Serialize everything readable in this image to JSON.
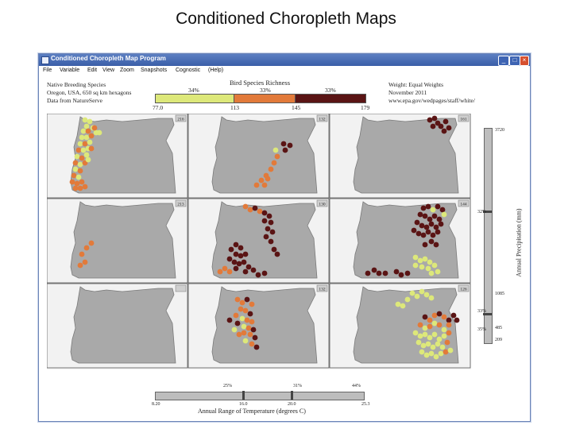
{
  "slide": {
    "title": "Conditioned Choropleth Maps"
  },
  "window": {
    "title": "Conditioned Choropleth Map Program",
    "controls": {
      "minimize": "_",
      "maximize": "□",
      "close": "×"
    }
  },
  "menu": [
    "File",
    "Variable",
    "Edit",
    "View",
    "Zoom",
    "Snapshots",
    "Cognostic",
    "(Help)"
  ],
  "info_left": [
    "Native Breeding Species",
    "Oregon, USA, 650 sq km hexagons",
    "Data from NatureServe"
  ],
  "info_right": [
    "Weight: Equal Weights",
    "November 2011",
    "www.epa.gov/wedpages/staff/white/"
  ],
  "legend": {
    "title": "Bird Species Richness",
    "classes": [
      {
        "pct": "34%",
        "color": "#dde87a"
      },
      {
        "pct": "33%",
        "color": "#e27a3a"
      },
      {
        "pct": "33%",
        "color": "#5a1414"
      }
    ],
    "breaks": [
      "77.0",
      "113",
      "145",
      "179"
    ]
  },
  "panel_counts": [
    "216",
    "132",
    "161",
    "213",
    "130",
    "144",
    "",
    "132",
    "126"
  ],
  "precipitation": {
    "label": "Annual Precipitation (mm)",
    "ticks": [
      "3720",
      "1085",
      "485",
      "209"
    ],
    "pcts": [
      "32%",
      "33%",
      "35%"
    ]
  },
  "temperature": {
    "label": "Annual Range of Temperature (degrees C)",
    "ticks": [
      "8.20",
      "16.0",
      "20.0",
      "25.3"
    ],
    "pcts": [
      "25%",
      "31%",
      "44%"
    ]
  },
  "colors": {
    "state_fill": "#a9a9a9",
    "panel_bg": "#f2f2f2",
    "titlebar": "#3a5ea8",
    "low": "#dde87a",
    "mid": "#e27a3a",
    "high": "#5a1414"
  }
}
